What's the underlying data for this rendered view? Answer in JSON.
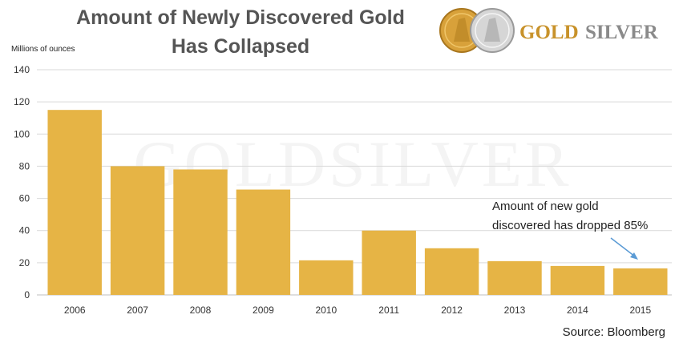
{
  "title_lines": [
    "Amount of Newly Discovered Gold",
    "Has Collapsed"
  ],
  "logo": {
    "word1": "GOLD",
    "word2": "SILVER",
    "gold_color": "#c8922a",
    "silver_color": "#8a8a8a"
  },
  "watermark": "GOLDSILVER",
  "annotation": {
    "lines": [
      "Amount of new gold",
      "discovered has dropped 85%"
    ],
    "arrow_color": "#5b9bd5"
  },
  "source": "Source: Bloomberg",
  "chart_data": {
    "type": "bar",
    "ylabel": "Millions of ounces",
    "categories": [
      "2006",
      "2007",
      "2008",
      "2009",
      "2010",
      "2011",
      "2012",
      "2013",
      "2014",
      "2015"
    ],
    "values": [
      115,
      80,
      78,
      65.5,
      21.5,
      40,
      29,
      21,
      18,
      16.5
    ],
    "ylim": [
      0,
      140
    ],
    "yticks": [
      0,
      20,
      40,
      60,
      80,
      100,
      120,
      140
    ],
    "grid": true,
    "legend": "none",
    "bar_color": "#e6b445"
  }
}
